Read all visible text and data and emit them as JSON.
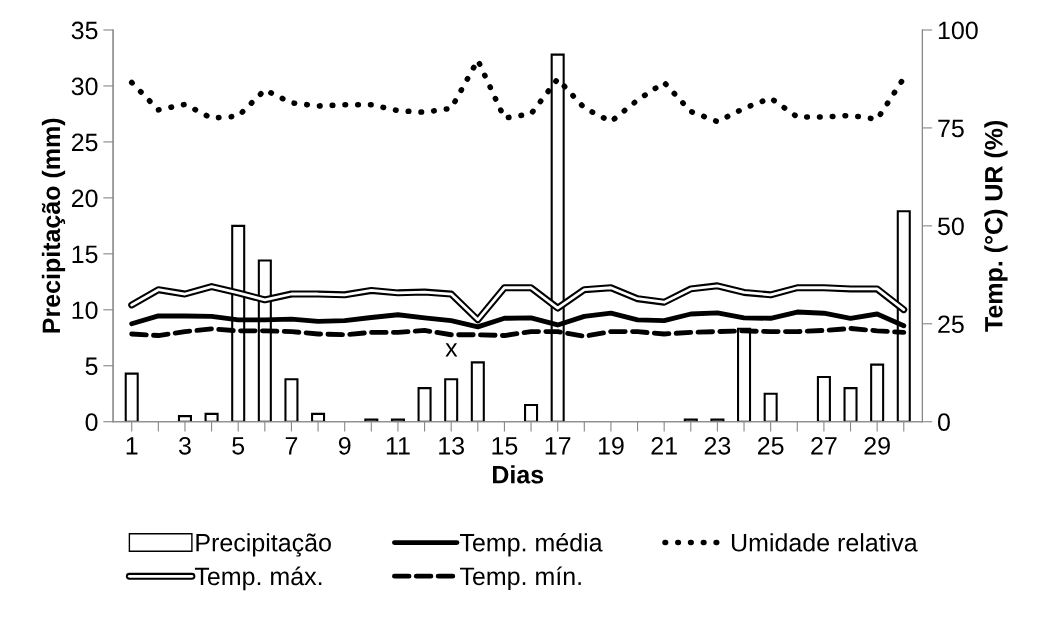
{
  "chart_data": {
    "type": "bar",
    "xlabel": "Dias",
    "ylabel": "Precipitação (mm)",
    "y2label": "Temp. (°C) UR (%)",
    "categories": [
      "1",
      null,
      "3",
      null,
      "5",
      null,
      "7",
      null,
      "9",
      null,
      "11",
      null,
      "13",
      null,
      "15",
      null,
      "17",
      null,
      "19",
      null,
      "21",
      null,
      "23",
      null,
      "25",
      null,
      "27",
      null,
      "29",
      null
    ],
    "series": [
      {
        "name": "Precipitação",
        "color": "#ffffff",
        "values": [
          4.3,
          0,
          0.5,
          0.7,
          17.5,
          14.4,
          3.8,
          0.7,
          0,
          0.2,
          0.2,
          3.0,
          3.8,
          5.3,
          0,
          1.5,
          32.8,
          0,
          0,
          0,
          0,
          0.2,
          0.2,
          8.3,
          2.5,
          0,
          4.0,
          3.0,
          5.1,
          18.8
        ]
      },
      {
        "name": "Temp. máx.",
        "type": "line",
        "axis": "y2",
        "color": "#000000",
        "line_style": "solid",
        "values": [
          29.8,
          33.7,
          32.6,
          34.5,
          32.9,
          31.1,
          32.6,
          32.6,
          32.4,
          33.5,
          32.9,
          33.1,
          32.6,
          26.0,
          34.2,
          34.2,
          29.0,
          33.7,
          34.2,
          31.4,
          30.5,
          33.9,
          34.7,
          33.0,
          32.4,
          34.2,
          34.2,
          33.9,
          33.9,
          28.6
        ]
      },
      {
        "name": "Temp. média",
        "type": "line",
        "axis": "y2",
        "color": "#000000",
        "line_style": "solid",
        "values": [
          25.0,
          27.0,
          27.0,
          26.9,
          26.0,
          26.0,
          26.2,
          25.6,
          25.8,
          26.6,
          27.3,
          26.5,
          25.8,
          24.2,
          26.4,
          26.5,
          24.7,
          26.9,
          27.7,
          26.0,
          25.8,
          27.5,
          27.8,
          26.5,
          26.4,
          28.0,
          27.7,
          26.4,
          27.5,
          24.5
        ]
      },
      {
        "name": "Temp. mín.",
        "type": "line",
        "axis": "y2",
        "color": "#000000",
        "line_style": "dashed",
        "values": [
          22.4,
          22.0,
          23.0,
          23.7,
          23.2,
          23.2,
          23.0,
          22.4,
          22.2,
          22.8,
          22.8,
          23.3,
          22.2,
          22.2,
          22.0,
          23.0,
          23.0,
          21.8,
          23.0,
          23.0,
          22.4,
          22.8,
          23.0,
          23.2,
          23.0,
          23.0,
          23.3,
          23.8,
          23.2,
          22.8
        ]
      },
      {
        "name": "Umidade relativa",
        "type": "line",
        "axis": "y2",
        "color": "#000000",
        "line_style": "dotted",
        "values": [
          86.6,
          79.6,
          81.0,
          77.5,
          78.0,
          84.7,
          81.4,
          80.6,
          80.9,
          80.9,
          79.4,
          79.0,
          80.0,
          92.3,
          77.5,
          78.6,
          87.5,
          80.1,
          76.6,
          82.1,
          86.6,
          79.2,
          76.6,
          80.0,
          82.6,
          77.8,
          77.8,
          78.2,
          77.2,
          87.7
        ]
      }
    ],
    "ylim": [
      0,
      35
    ],
    "yticks": [
      0,
      5,
      10,
      15,
      20,
      25,
      30,
      35
    ],
    "y2lim": [
      0,
      100
    ],
    "y2ticks": [
      0,
      25,
      50,
      75,
      100
    ],
    "annotations": [
      "x"
    ],
    "legend": "bottom",
    "grid": false,
    "marker": "none"
  }
}
